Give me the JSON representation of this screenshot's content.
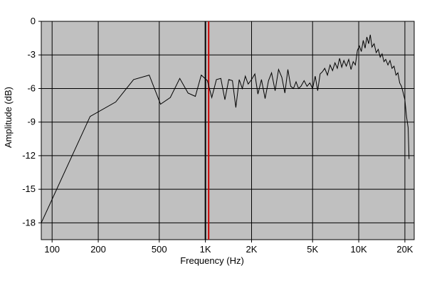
{
  "chart_data": {
    "type": "line",
    "title": "",
    "xlabel": "Frequency (Hz)",
    "ylabel": "Amplitude (dB)",
    "x_scale": "log",
    "xlim": [
      85,
      23000
    ],
    "ylim": [
      -19.5,
      0
    ],
    "grid": true,
    "x_ticks": [
      {
        "value": 100,
        "label": "100"
      },
      {
        "value": 200,
        "label": "200"
      },
      {
        "value": 500,
        "label": "500"
      },
      {
        "value": 1000,
        "label": "1K"
      },
      {
        "value": 2000,
        "label": "2K"
      },
      {
        "value": 5000,
        "label": "5K"
      },
      {
        "value": 10000,
        "label": "10K"
      },
      {
        "value": 20000,
        "label": "20K"
      }
    ],
    "y_ticks": [
      {
        "value": 0,
        "label": "0"
      },
      {
        "value": -3,
        "label": "-3"
      },
      {
        "value": -6,
        "label": "-6"
      },
      {
        "value": -9,
        "label": "-9"
      },
      {
        "value": -12,
        "label": "-12"
      },
      {
        "value": -15,
        "label": "-15"
      },
      {
        "value": -18,
        "label": "-18"
      }
    ],
    "markers": [
      {
        "x": 1000,
        "color": "#000000"
      },
      {
        "x": 1050,
        "color": "#cc0000"
      }
    ],
    "series": [
      {
        "color": "#000000",
        "points": [
          [
            85,
            -18.0
          ],
          [
            177,
            -8.5
          ],
          [
            260,
            -7.2
          ],
          [
            340,
            -5.2
          ],
          [
            430,
            -4.8
          ],
          [
            510,
            -7.4
          ],
          [
            590,
            -6.8
          ],
          [
            680,
            -5.1
          ],
          [
            770,
            -6.4
          ],
          [
            860,
            -6.7
          ],
          [
            940,
            -4.8
          ],
          [
            1030,
            -5.3
          ],
          [
            1100,
            -6.8
          ],
          [
            1180,
            -5.2
          ],
          [
            1260,
            -5.1
          ],
          [
            1340,
            -7.0
          ],
          [
            1420,
            -5.2
          ],
          [
            1500,
            -5.3
          ],
          [
            1580,
            -7.7
          ],
          [
            1660,
            -5.2
          ],
          [
            1740,
            -6.0
          ],
          [
            1820,
            -4.9
          ],
          [
            1900,
            -5.6
          ],
          [
            2000,
            -5.2
          ],
          [
            2100,
            -4.7
          ],
          [
            2200,
            -6.5
          ],
          [
            2320,
            -5.2
          ],
          [
            2450,
            -6.9
          ],
          [
            2580,
            -5.3
          ],
          [
            2700,
            -4.6
          ],
          [
            2850,
            -6.2
          ],
          [
            3000,
            -4.3
          ],
          [
            3150,
            -5.0
          ],
          [
            3300,
            -6.4
          ],
          [
            3450,
            -4.3
          ],
          [
            3600,
            -5.8
          ],
          [
            3750,
            -6.0
          ],
          [
            3900,
            -5.4
          ],
          [
            4050,
            -6.0
          ],
          [
            4200,
            -5.8
          ],
          [
            4400,
            -5.3
          ],
          [
            4600,
            -5.8
          ],
          [
            4800,
            -5.5
          ],
          [
            5000,
            -6.0
          ],
          [
            5200,
            -4.9
          ],
          [
            5400,
            -6.2
          ],
          [
            5600,
            -4.7
          ],
          [
            5800,
            -4.5
          ],
          [
            6000,
            -4.2
          ],
          [
            6250,
            -4.8
          ],
          [
            6500,
            -3.9
          ],
          [
            6750,
            -4.4
          ],
          [
            7000,
            -3.7
          ],
          [
            7250,
            -4.2
          ],
          [
            7500,
            -3.3
          ],
          [
            7750,
            -4.1
          ],
          [
            8000,
            -3.5
          ],
          [
            8300,
            -4.0
          ],
          [
            8600,
            -3.4
          ],
          [
            8900,
            -4.3
          ],
          [
            9200,
            -3.6
          ],
          [
            9500,
            -3.9
          ],
          [
            9800,
            -2.6
          ],
          [
            10100,
            -2.2
          ],
          [
            10400,
            -2.7
          ],
          [
            10700,
            -1.7
          ],
          [
            11000,
            -2.4
          ],
          [
            11300,
            -1.4
          ],
          [
            11600,
            -2.0
          ],
          [
            11900,
            -1.2
          ],
          [
            12200,
            -2.3
          ],
          [
            12600,
            -2.0
          ],
          [
            13000,
            -2.8
          ],
          [
            13400,
            -2.5
          ],
          [
            13800,
            -3.2
          ],
          [
            14200,
            -2.9
          ],
          [
            14600,
            -3.6
          ],
          [
            15000,
            -3.4
          ],
          [
            15500,
            -3.9
          ],
          [
            16000,
            -3.5
          ],
          [
            16500,
            -4.2
          ],
          [
            17000,
            -4.0
          ],
          [
            17500,
            -4.8
          ],
          [
            18000,
            -4.6
          ],
          [
            18500,
            -5.5
          ],
          [
            19000,
            -5.8
          ],
          [
            19500,
            -6.4
          ],
          [
            20000,
            -7.0
          ],
          [
            20500,
            -8.5
          ],
          [
            21000,
            -9.5
          ],
          [
            21300,
            -12.3
          ]
        ]
      }
    ]
  }
}
